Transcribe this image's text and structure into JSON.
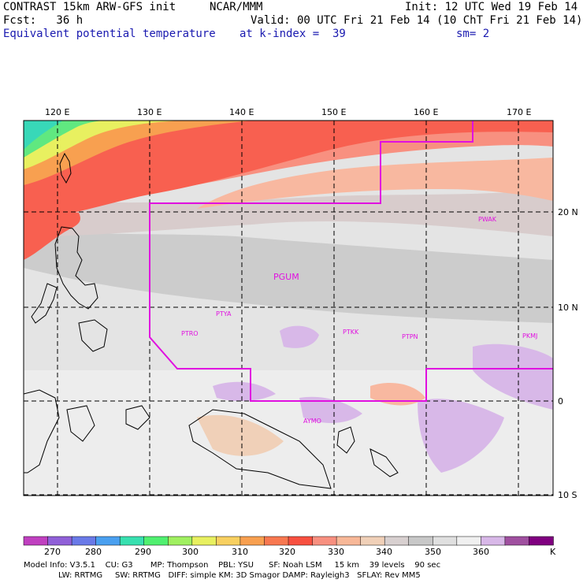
{
  "header": {
    "model": "CONTRAST 15km ARW-GFS init",
    "org": "NCAR/MMM",
    "init": "Init: 12 UTC Wed 19 Feb 14",
    "fcst": "Fcst:   36 h",
    "valid": "Valid: 00 UTC Fri 21 Feb 14 (10 ChT Fri 21 Feb 14)",
    "field": "Equivalent potential temperature",
    "level": "at k-index =  39",
    "smooth": "sm= 2"
  },
  "axes": {
    "lon_labels": [
      "120 E",
      "130 E",
      "140 E",
      "150 E",
      "160 E",
      "170 E"
    ],
    "lat_labels": [
      "20 N",
      "10 N",
      "0",
      "10 S"
    ]
  },
  "stations": [
    "PWAK",
    "PGUM",
    "PTYA",
    "PTRO",
    "PTKK",
    "PTPN",
    "PKMJ",
    "AYMO"
  ],
  "legend": {
    "labels": [
      "270",
      "280",
      "290",
      "300",
      "310",
      "320",
      "330",
      "340",
      "350",
      "360"
    ],
    "unit": "K",
    "colors": [
      "#c040c0",
      "#9060d8",
      "#6a7ae8",
      "#4aa0f0",
      "#38e0b0",
      "#50f070",
      "#a0f060",
      "#e8f060",
      "#f8d060",
      "#f8a050",
      "#f87850",
      "#f85040",
      "#f89080",
      "#f8b898",
      "#f0d0b8",
      "#d8d0d0",
      "#c8c8c8",
      "#e0e0e0",
      "#f0f0f0",
      "#d8b8e8",
      "#a050a0",
      "#800080"
    ]
  },
  "footer": {
    "line1": "Model Info: V3.5.1    CU: G3       MP: Thompson    PBL: YSU      SF: Noah LSM     15 km    39 levels    90 sec",
    "line2": "LW: RRTMG     SW: RRTMG   DIFF: simple KM: 3D Smagor DAMP: Rayleigh3   SFLAY: Rev MM5"
  }
}
